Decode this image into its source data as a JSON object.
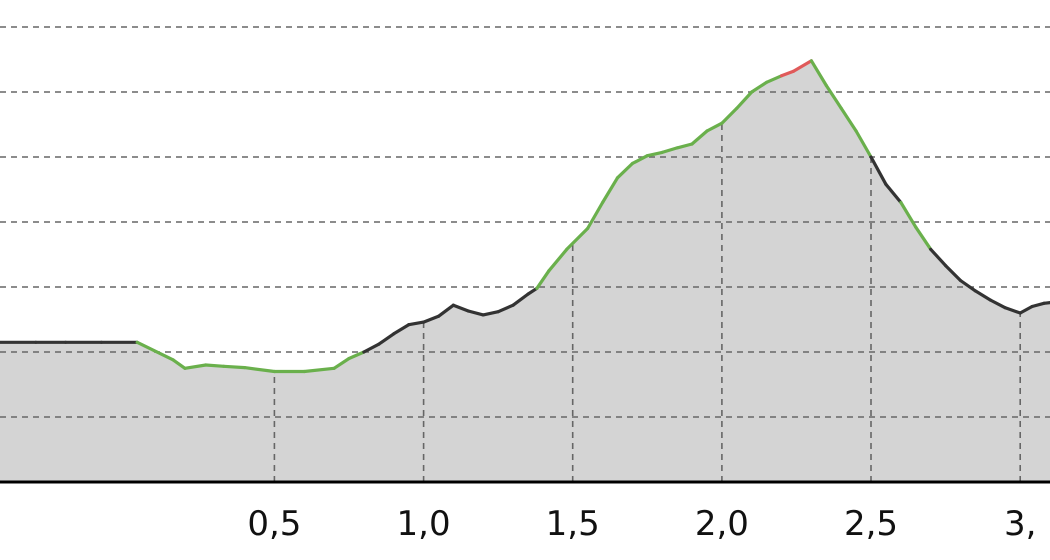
{
  "chart_data": {
    "type": "area",
    "title": "",
    "xlabel": "",
    "ylabel": "",
    "xlim": [
      -0.42,
      3.1
    ],
    "ylim": [
      0,
      700
    ],
    "x_ticks": [
      {
        "value": 0.5,
        "label": "0,5"
      },
      {
        "value": 1.0,
        "label": "1,0"
      },
      {
        "value": 1.5,
        "label": "1,5"
      },
      {
        "value": 2.0,
        "label": "2,0"
      },
      {
        "value": 2.5,
        "label": "2,5"
      },
      {
        "value": 3.0,
        "label": "3,"
      }
    ],
    "y_gridlines": [
      100,
      200,
      300,
      400,
      500,
      600,
      700
    ],
    "grid": true,
    "fill_color": "#d4d4d4",
    "gradient_colors": {
      "flat": "#333333",
      "uphill": "#6ab04c",
      "steep": "#e05a5a"
    },
    "series": [
      {
        "points": [
          [
            -0.42,
            215
          ],
          [
            -0.3,
            215
          ],
          [
            -0.2,
            215
          ],
          [
            -0.08,
            215
          ],
          [
            0.04,
            215
          ],
          [
            0.16,
            188
          ],
          [
            0.2,
            175
          ],
          [
            0.27,
            180
          ],
          [
            0.33,
            178
          ],
          [
            0.4,
            176
          ],
          [
            0.5,
            170
          ],
          [
            0.6,
            170
          ],
          [
            0.7,
            175
          ],
          [
            0.75,
            190
          ],
          [
            0.8,
            200
          ],
          [
            0.85,
            212
          ],
          [
            0.9,
            228
          ],
          [
            0.95,
            242
          ],
          [
            1.0,
            246
          ],
          [
            1.05,
            255
          ],
          [
            1.1,
            272
          ],
          [
            1.15,
            263
          ],
          [
            1.2,
            257
          ],
          [
            1.25,
            262
          ],
          [
            1.3,
            272
          ],
          [
            1.35,
            289
          ],
          [
            1.38,
            298
          ],
          [
            1.42,
            325
          ],
          [
            1.48,
            358
          ],
          [
            1.55,
            390
          ],
          [
            1.6,
            430
          ],
          [
            1.65,
            468
          ],
          [
            1.7,
            490
          ],
          [
            1.75,
            502
          ],
          [
            1.8,
            507
          ],
          [
            1.85,
            514
          ],
          [
            1.9,
            520
          ],
          [
            1.95,
            540
          ],
          [
            2.0,
            552
          ],
          [
            2.05,
            575
          ],
          [
            2.1,
            600
          ],
          [
            2.15,
            615
          ],
          [
            2.2,
            625
          ],
          [
            2.24,
            632
          ],
          [
            2.3,
            648
          ],
          [
            2.35,
            610
          ],
          [
            2.4,
            575
          ],
          [
            2.45,
            540
          ],
          [
            2.5,
            500
          ],
          [
            2.55,
            458
          ],
          [
            2.6,
            430
          ],
          [
            2.65,
            392
          ],
          [
            2.7,
            358
          ],
          [
            2.75,
            333
          ],
          [
            2.8,
            310
          ],
          [
            2.85,
            294
          ],
          [
            2.9,
            280
          ],
          [
            2.95,
            268
          ],
          [
            3.0,
            260
          ],
          [
            3.04,
            270
          ],
          [
            3.08,
            275
          ],
          [
            3.1,
            276
          ]
        ],
        "colors": [
          "flat",
          "flat",
          "flat",
          "flat",
          "uphill",
          "uphill",
          "uphill",
          "uphill",
          "uphill",
          "uphill",
          "uphill",
          "uphill",
          "uphill",
          "uphill",
          "flat",
          "flat",
          "flat",
          "flat",
          "flat",
          "flat",
          "flat",
          "flat",
          "flat",
          "flat",
          "flat",
          "flat",
          "uphill",
          "uphill",
          "uphill",
          "uphill",
          "uphill",
          "uphill",
          "uphill",
          "uphill",
          "uphill",
          "uphill",
          "uphill",
          "uphill",
          "uphill",
          "uphill",
          "uphill",
          "uphill",
          "steep",
          "steep",
          "uphill",
          "uphill",
          "uphill",
          "uphill",
          "flat",
          "flat",
          "uphill",
          "uphill",
          "flat",
          "flat",
          "flat",
          "flat",
          "flat",
          "flat",
          "flat",
          "flat",
          "flat"
        ]
      }
    ]
  }
}
